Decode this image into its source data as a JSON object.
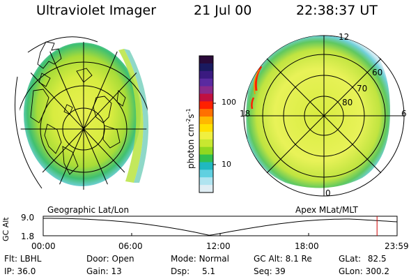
{
  "header": {
    "instrument": "Ultraviolet Imager",
    "date": "21 Jul 00",
    "time": "22:38:37 UT"
  },
  "colorbar": {
    "ticks": [
      "100",
      "10"
    ],
    "unit_main": "photon cm",
    "unit_sup1": "-2",
    "unit_mid": "s",
    "unit_sup2": "-1",
    "colors": [
      "#2a0a3a",
      "#1a1a60",
      "#3a1a80",
      "#5a2aa0",
      "#8a2a8a",
      "#c01040",
      "#ff2000",
      "#ff7000",
      "#ffb800",
      "#ffe000",
      "#f0f040",
      "#c8e830",
      "#90d820",
      "#30c050",
      "#20b8c0",
      "#60d0e0",
      "#b0e4f0",
      "#e0eef4"
    ]
  },
  "maps": {
    "left_caption": "Geographic Lat/Lon",
    "right_caption": "Apex MLat/MLT",
    "mlt_labels": {
      "top": "12",
      "left": "18",
      "right": "6",
      "bottom": "0"
    },
    "mlat_labels": [
      "60",
      "70",
      "80"
    ]
  },
  "timeline": {
    "ylabel": "GC Alt",
    "yticks": [
      "9.0",
      "1.8"
    ],
    "xticks": [
      "00:00",
      "06:00",
      "12:00",
      "18:00",
      "23:59"
    ],
    "current_hour": 22.64
  },
  "info": {
    "flt_label": "Flt:",
    "flt_value": "LBHL",
    "ip_label": "IP:",
    "ip_value": "36.0",
    "door_label": "Door:",
    "door_value": "Open",
    "gain_label": "Gain:",
    "gain_value": "13",
    "mode_label": "Mode:",
    "mode_value": "Normal",
    "dsp_label": "Dsp:",
    "dsp_value": "5.1",
    "gcalt_label": "GC Alt:",
    "gcalt_value": "8.1 Re",
    "seq_label": "Seq:",
    "seq_value": "39",
    "glat_label": "GLat:",
    "glat_value": "82.5",
    "glon_label": "GLon:",
    "glon_value": "300.2"
  }
}
